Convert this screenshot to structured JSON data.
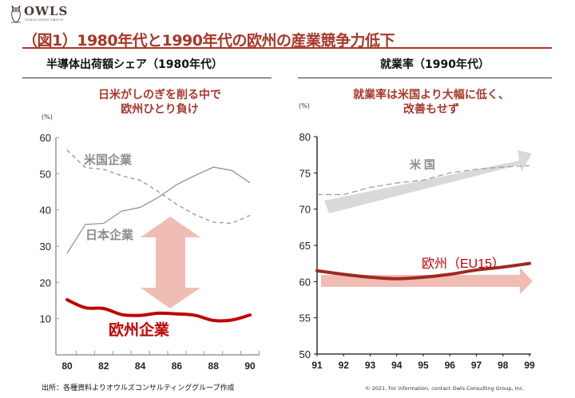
{
  "brand": {
    "name": "OWLS",
    "tagline": "CONSULTING GROUP",
    "icon": "owl-logo-icon"
  },
  "title": "（図1）1980年代と1990年代の欧州の産業競争力低下",
  "footer": {
    "source": "出所：各種資料よりオウルズコンサルティンググループ作成",
    "copyright": "© 2021. For information, contact Owls Consulting Group, Inc."
  },
  "colors": {
    "accent": "#a8382a",
    "europe_left": "#c00000",
    "europe_right": "#9e2a1f",
    "us_arrow": "#d9d9d9",
    "europe_arrow": "#f0bdb5"
  },
  "chart_data": [
    {
      "type": "line",
      "title": "半導体出荷額シェア（1980年代）",
      "headline": [
        "日米がしのぎを削る中で",
        "欧州ひとり負け"
      ],
      "ylabel": "(%)",
      "xlabel": "",
      "ylim": [
        0,
        60
      ],
      "yticks": [
        10,
        20,
        30,
        40,
        50,
        60
      ],
      "ytick_labels": [
        "10",
        "20",
        "30",
        "40",
        "50",
        "60"
      ],
      "x": [
        80,
        81,
        82,
        83,
        84,
        85,
        86,
        87,
        88,
        89,
        90
      ],
      "xtick_labels": [
        "80",
        "82",
        "84",
        "86",
        "88",
        "90"
      ],
      "grid": false,
      "series": [
        {
          "name": "米国企業",
          "style": "dashed",
          "color": "#8c8c8c",
          "values": [
            56.5,
            51.7,
            51.2,
            49.4,
            48.2,
            45.0,
            41.5,
            38.7,
            36.6,
            36.3,
            38.5
          ]
        },
        {
          "name": "日本企業",
          "style": "solid",
          "color": "#8c8c8c",
          "values": [
            28.0,
            36.0,
            36.3,
            39.7,
            40.7,
            43.5,
            47.0,
            49.5,
            51.8,
            50.9,
            47.5
          ]
        },
        {
          "name": "欧州企業",
          "style": "thick",
          "color": "#c00000",
          "values": [
            15.2,
            13.0,
            12.8,
            11.1,
            10.9,
            11.5,
            11.3,
            10.9,
            9.5,
            9.6,
            11.0
          ]
        }
      ],
      "annotations": [
        "gap double-arrow between 日本/米国 and 欧州"
      ]
    },
    {
      "type": "line",
      "title": "就業率（1990年代）",
      "headline": [
        "就業率は米国より大幅に低く、",
        "改善もせず"
      ],
      "ylabel": "(%)",
      "xlabel": "",
      "ylim": [
        50,
        80
      ],
      "yticks": [
        50,
        55,
        60,
        65,
        70,
        75,
        80
      ],
      "ytick_labels": [
        "50",
        "55",
        "60",
        "65",
        "70",
        "75",
        "80"
      ],
      "x": [
        91,
        92,
        93,
        94,
        95,
        96,
        97,
        98,
        99
      ],
      "xtick_labels": [
        "91",
        "92",
        "93",
        "94",
        "95",
        "96",
        "97",
        "98",
        "99"
      ],
      "grid": false,
      "series": [
        {
          "name": "米 国",
          "style": "dashed",
          "color": "#8c8c8c",
          "values": [
            72.0,
            72.0,
            73.0,
            73.6,
            74.0,
            75.0,
            75.5,
            75.8,
            76.0
          ]
        },
        {
          "name": "欧州（EU15）",
          "style": "thick",
          "color": "#9e2a1f",
          "values": [
            61.5,
            61.0,
            60.6,
            60.4,
            60.6,
            61.0,
            61.6,
            62.0,
            62.5
          ]
        }
      ],
      "annotations": [
        "rising trend arrow (米国)",
        "flat trend arrow (欧州)"
      ]
    }
  ]
}
